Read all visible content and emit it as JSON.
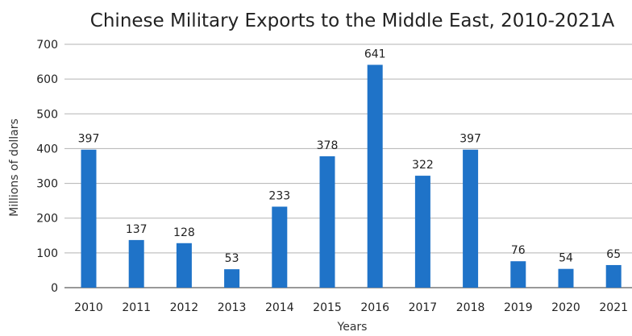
{
  "chart_data": {
    "type": "bar",
    "title": "Chinese Military Exports to the Middle East, 2010-2021A",
    "xlabel": "Years",
    "ylabel": "Millions of dollars",
    "categories": [
      "2010",
      "2011",
      "2012",
      "2013",
      "2014",
      "2015",
      "2016",
      "2017",
      "2018",
      "2019",
      "2020",
      "2021"
    ],
    "values": [
      397,
      137,
      128,
      53,
      233,
      378,
      641,
      322,
      397,
      76,
      54,
      65
    ],
    "ylim": [
      0,
      700
    ],
    "yticks": [
      0,
      100,
      200,
      300,
      400,
      500,
      600,
      700
    ],
    "grid": true,
    "bar_color": "#1f73c8",
    "legend": "none"
  }
}
